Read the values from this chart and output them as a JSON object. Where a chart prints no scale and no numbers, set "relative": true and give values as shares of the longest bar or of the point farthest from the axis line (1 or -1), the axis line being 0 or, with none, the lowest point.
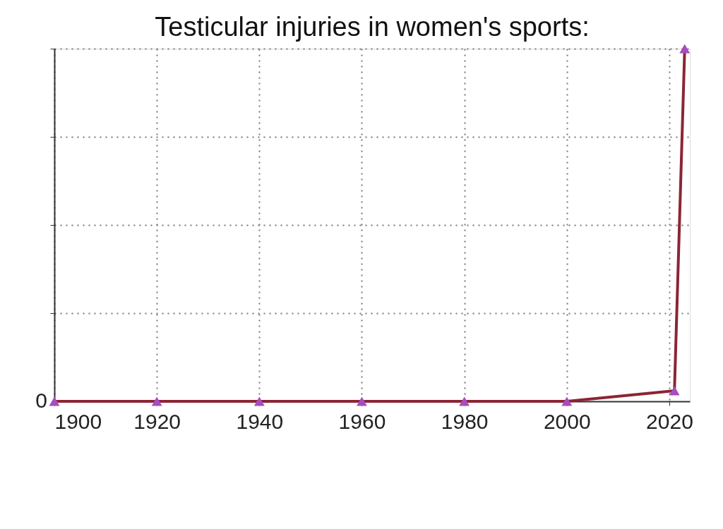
{
  "chart_data": {
    "type": "line",
    "title": "Testicular injuries in women's sports:",
    "relative": true,
    "x": [
      1900,
      1920,
      1940,
      1960,
      1980,
      2000,
      2021,
      2023
    ],
    "series": [
      {
        "color": "#8b2535",
        "values": [
          0,
          0,
          0,
          0,
          0,
          0,
          0.03,
          1
        ]
      }
    ],
    "xlim": [
      1900,
      2024
    ],
    "xticks": [
      1900,
      1920,
      1940,
      1960,
      1980,
      2000,
      2020
    ],
    "annotations": [
      {
        "text": "0",
        "x": 1900,
        "y": 0
      }
    ],
    "grid": true,
    "marker": "triangle",
    "line_style": "solid"
  }
}
